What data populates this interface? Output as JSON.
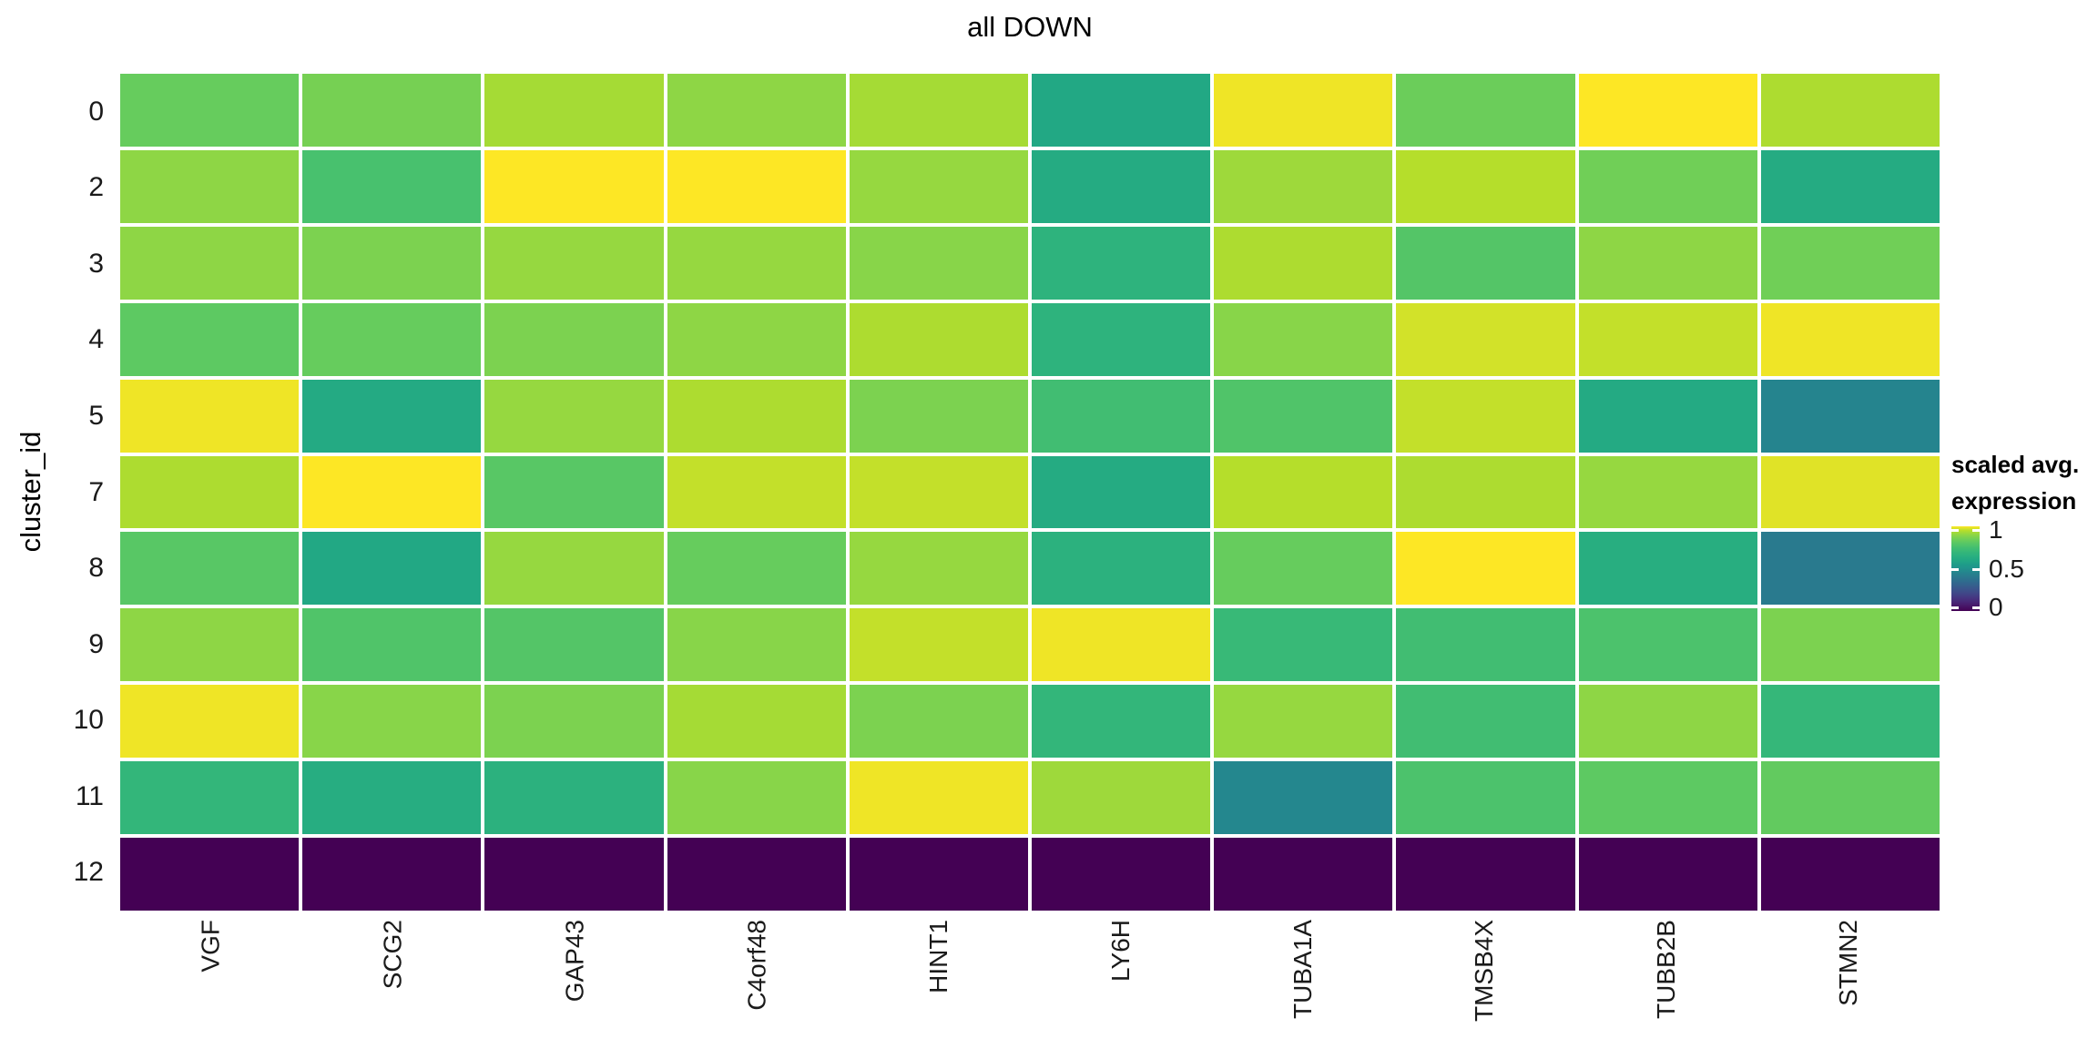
{
  "chart_data": {
    "type": "heatmap",
    "title": "all DOWN",
    "xlabel": "",
    "ylabel": "cluster_id",
    "columns": [
      "VGF",
      "SCG2",
      "GAP43",
      "C4orf48",
      "HINT1",
      "LY6H",
      "TUBA1A",
      "TMSB4X",
      "TUBB2B",
      "STMN2"
    ],
    "rows": [
      "0",
      "2",
      "3",
      "4",
      "5",
      "7",
      "8",
      "9",
      "10",
      "11",
      "12"
    ],
    "values": [
      [
        0.83,
        0.86,
        0.93,
        0.9,
        0.93,
        0.6,
        0.99,
        0.84,
        1.0,
        0.94
      ],
      [
        0.9,
        0.76,
        1.0,
        1.0,
        0.91,
        0.62,
        0.92,
        0.95,
        0.85,
        0.62
      ],
      [
        0.9,
        0.87,
        0.91,
        0.91,
        0.89,
        0.67,
        0.94,
        0.79,
        0.9,
        0.85
      ],
      [
        0.81,
        0.83,
        0.87,
        0.9,
        0.94,
        0.67,
        0.89,
        0.97,
        0.96,
        0.99
      ],
      [
        0.99,
        0.61,
        0.91,
        0.94,
        0.87,
        0.74,
        0.78,
        0.96,
        0.61,
        0.45
      ],
      [
        0.94,
        1.0,
        0.8,
        0.96,
        0.96,
        0.62,
        0.95,
        0.94,
        0.91,
        0.98
      ],
      [
        0.8,
        0.6,
        0.91,
        0.83,
        0.91,
        0.66,
        0.83,
        1.0,
        0.64,
        0.41
      ],
      [
        0.9,
        0.78,
        0.79,
        0.89,
        0.96,
        0.99,
        0.71,
        0.74,
        0.77,
        0.87
      ],
      [
        0.99,
        0.89,
        0.87,
        0.93,
        0.87,
        0.69,
        0.91,
        0.74,
        0.9,
        0.7
      ],
      [
        0.69,
        0.63,
        0.66,
        0.89,
        0.99,
        0.92,
        0.46,
        0.77,
        0.81,
        0.82
      ],
      [
        0.0,
        0.0,
        0.0,
        0.0,
        0.0,
        0.0,
        0.0,
        0.0,
        0.0,
        0.0
      ]
    ],
    "colormap": "viridis",
    "vmin": 0,
    "vmax": 1,
    "grid_gap_color": "#ffffff",
    "legend": {
      "position": "right",
      "title_line1": "scaled avg.",
      "title_line2": "expression",
      "ticks": [
        {
          "label": "1",
          "value": 1
        },
        {
          "label": "0.5",
          "value": 0.5
        },
        {
          "label": "0",
          "value": 0
        }
      ]
    }
  },
  "colors": {
    "background": "#ffffff",
    "title_text": "#000000",
    "axis_text": "#1a1a1a",
    "viridis_min": "#440154",
    "viridis_mid": "#21918c",
    "viridis_max": "#fde725"
  }
}
